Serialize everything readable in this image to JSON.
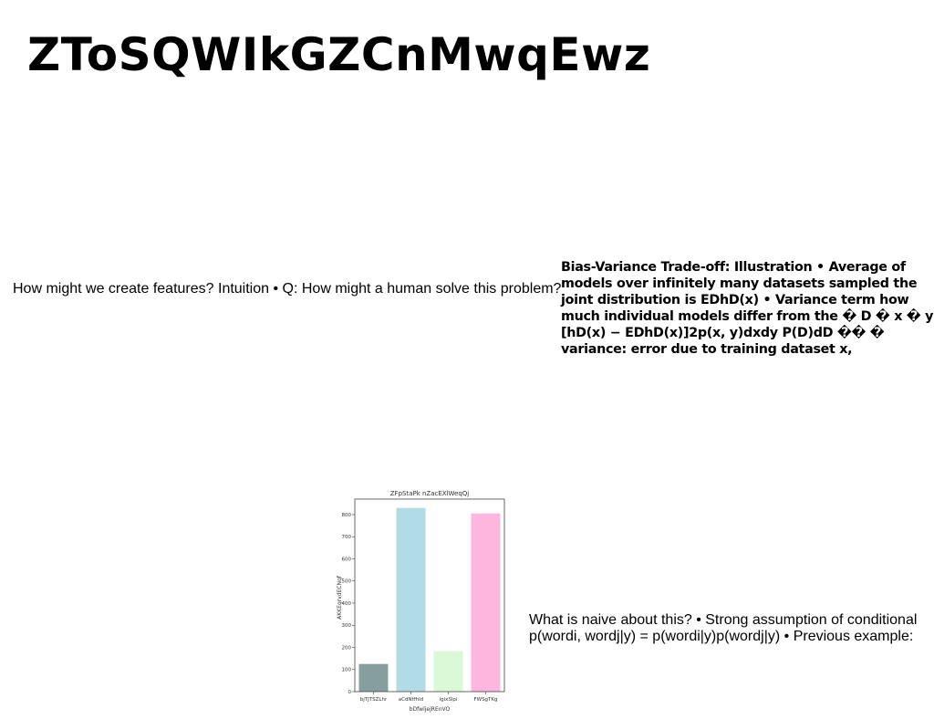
{
  "title": "ZToSQWIkGZCnMwqEwz",
  "text_left": "How might we create features? Intuition • Q: How might a human solve this problem?",
  "text_right": "Bias-Variance Trade-off: Illustration • Average of models over infinitely many datasets sampled the joint distribution is EDhD(x) • Variance term how much individual models differ from the � D � x � y [hD(x) − EDhD(x)]2p(x, y)dxdy P(D)dD �� � variance: error due to training dataset x,",
  "text_bottom": "What is naive about this? • Strong assumption of conditional p(wordi, wordj|y) = p(wordi|y)p(wordj|y) • Previous example:",
  "chart_data": {
    "type": "bar",
    "title": "ZFpStaPk nZacEXlWeqQj",
    "xlabel": "bDfwljejREnVO",
    "ylabel": "AKKEqrvdECNqf",
    "categories": [
      "bjTJTSZLhr",
      "aCdNtfhId",
      "igixSlpi",
      "FWSgTKg"
    ],
    "values": [
      125,
      830,
      183,
      805
    ],
    "colors": [
      "#869e9e",
      "#b1dce5",
      "#dafad7",
      "#fdb6dd"
    ],
    "ylim": [
      0,
      870
    ],
    "yticks": [
      0,
      100,
      200,
      300,
      400,
      500,
      600,
      700,
      800
    ],
    "grid": false
  }
}
